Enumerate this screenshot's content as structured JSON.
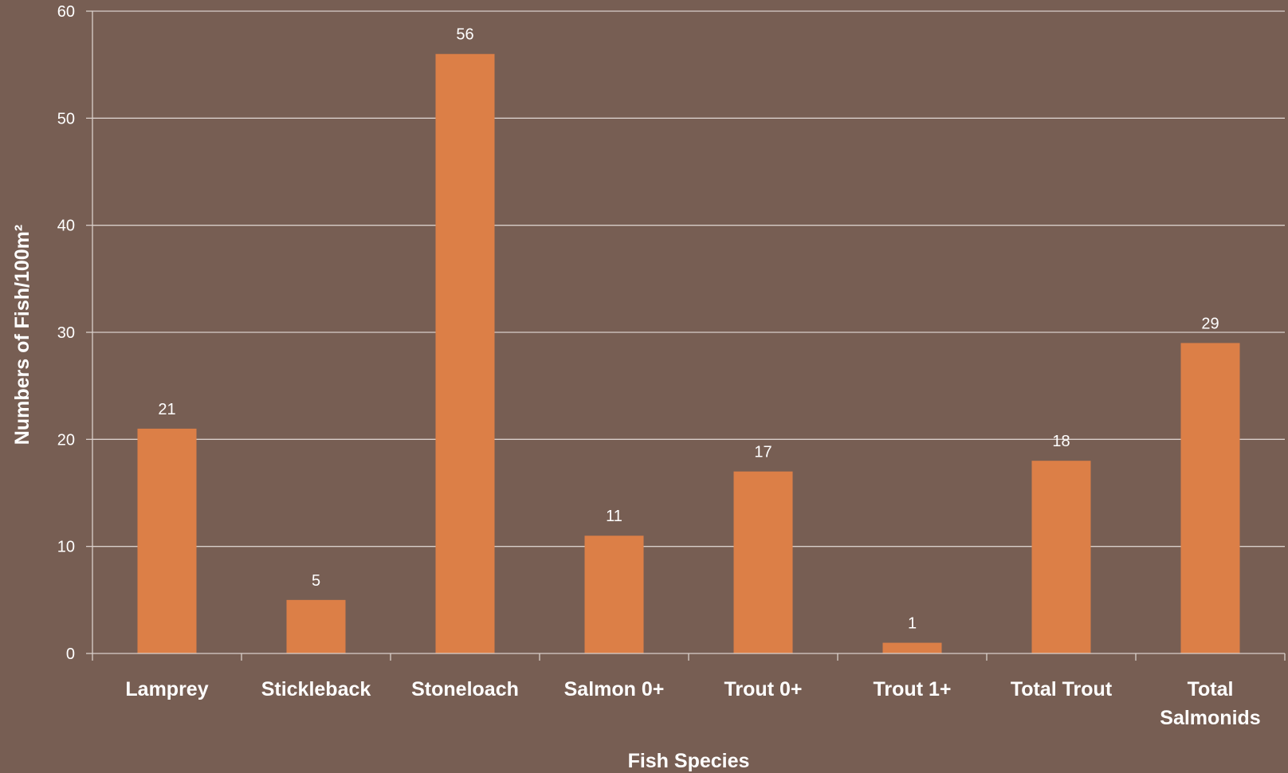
{
  "chart_data": {
    "type": "bar",
    "title": "",
    "xlabel": "Fish Species",
    "ylabel": "Numbers of Fish/100m²",
    "categories": [
      [
        "Lamprey"
      ],
      [
        "Stickleback"
      ],
      [
        "Stoneloach"
      ],
      [
        "Salmon 0+"
      ],
      [
        "Trout 0+"
      ],
      [
        "Trout 1+"
      ],
      [
        "Total Trout"
      ],
      [
        "Total",
        "Salmonids"
      ]
    ],
    "values": [
      21,
      5,
      56,
      11,
      17,
      1,
      18,
      29
    ],
    "data_labels": [
      "21",
      "5",
      "56",
      "11",
      "17",
      "1",
      "18",
      "29"
    ],
    "ylim": [
      0,
      60
    ],
    "yticks": [
      0,
      10,
      20,
      30,
      40,
      50,
      60
    ],
    "grid": true,
    "legend": "none",
    "colors": {
      "background": "#775e53",
      "bar": "#dc7f47",
      "grid": "#d9cfca",
      "text": "#ffffff"
    }
  }
}
